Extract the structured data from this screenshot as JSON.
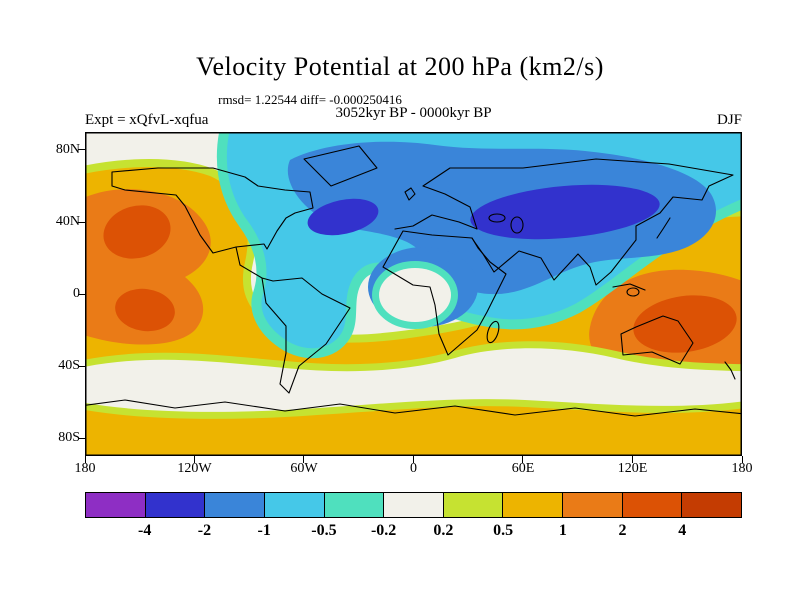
{
  "header": {
    "title": "Velocity Potential at 200 hPa (km2/s)",
    "stats_line": "rmsd= 1.22544 diff= -0.000250416",
    "period_line": "3052kyr BP - 0000kyr BP",
    "experiment_label": "Expt = xQfvL-xqfua",
    "season_label": "DJF"
  },
  "axes": {
    "y_ticks": [
      {
        "label": "80N",
        "lat": 80
      },
      {
        "label": "40N",
        "lat": 40
      },
      {
        "label": "0",
        "lat": 0
      },
      {
        "label": "40S",
        "lat": -40
      },
      {
        "label": "80S",
        "lat": -80
      }
    ],
    "x_ticks": [
      {
        "label": "180",
        "lon": -180
      },
      {
        "label": "120W",
        "lon": -120
      },
      {
        "label": "60W",
        "lon": -60
      },
      {
        "label": "0",
        "lon": 0
      },
      {
        "label": "60E",
        "lon": 60
      },
      {
        "label": "120E",
        "lon": 120
      },
      {
        "label": "180",
        "lon": 180
      }
    ]
  },
  "colorbar": {
    "levels": [
      "-4",
      "-2",
      "-1",
      "-0.5",
      "-0.2",
      "0.2",
      "0.5",
      "1",
      "2",
      "4"
    ],
    "colors": [
      "#8E2EC4",
      "#3232CD",
      "#3A85D9",
      "#45C8E8",
      "#4FE0BE",
      "#F2F1EA",
      "#C6E231",
      "#EDB400",
      "#EA7B17",
      "#DC5205",
      "#C43C02"
    ]
  },
  "chart_data": {
    "type": "heatmap",
    "subtype": "filled_contour_world_map",
    "title": "Velocity Potential at 200 hPa (km2/s)",
    "units": "km2/s",
    "statistics": {
      "rmsd": 1.22544,
      "diff": -0.000250416
    },
    "comparison": "3052kyr BP - 0000kyr BP",
    "experiment": "Expt = xQfvL-xqfua",
    "season": "DJF",
    "projection": "global equirectangular, 180W to 180E, 90N to 90S",
    "x_tick_labels": [
      "180",
      "120W",
      "60W",
      "0",
      "60E",
      "120E",
      "180"
    ],
    "y_tick_labels": [
      "80N",
      "40N",
      "0",
      "40S",
      "80S"
    ],
    "contour_levels": [
      -4,
      -2,
      -1,
      -0.5,
      -0.2,
      0.2,
      0.5,
      1,
      2,
      4
    ],
    "palette": [
      "#8E2EC4",
      "#3232CD",
      "#3A85D9",
      "#45C8E8",
      "#4FE0BE",
      "#F2F1EA",
      "#C6E231",
      "#EDB400",
      "#EA7B17",
      "#DC5205",
      "#C43C02"
    ],
    "legend_position": "bottom horizontal colorbar",
    "features": [
      {
        "sign": "negative",
        "level": "-1 to -0.5",
        "description": "Broad cyan negative region covering the Arctic, North Atlantic, Europe, Asia and northern Africa"
      },
      {
        "sign": "negative",
        "level": "-4 to -2",
        "description": "Strong elongated negative center over central/east Asia near 40N"
      },
      {
        "sign": "negative",
        "level": "-4 to -2",
        "description": "Negative center over North Africa near 15N"
      },
      {
        "sign": "negative",
        "level": "-4 to -2",
        "description": "Negative center over Europe / eastern North Atlantic near 40N"
      },
      {
        "sign": "positive",
        "level": "2 to 4",
        "description": "Positive anomaly with two dark orange cores in the northeast and tropical east Pacific near 140W"
      },
      {
        "sign": "positive",
        "level": "2 to 4",
        "description": "Positive anomaly with dark orange core over Australia and the west Pacific near 140E 20S"
      },
      {
        "sign": "near-zero",
        "level": "-0.2 to 0.2",
        "description": "White near-zero bands along North American west coast, southern mid-latitudes, right edge near 40N and equatorial Atlantic near 0E"
      },
      {
        "sign": "positive",
        "level": "0.5 to 1",
        "description": "Gold band over southern high latitudes and Antarctica and around the Pacific positive centers"
      }
    ]
  }
}
